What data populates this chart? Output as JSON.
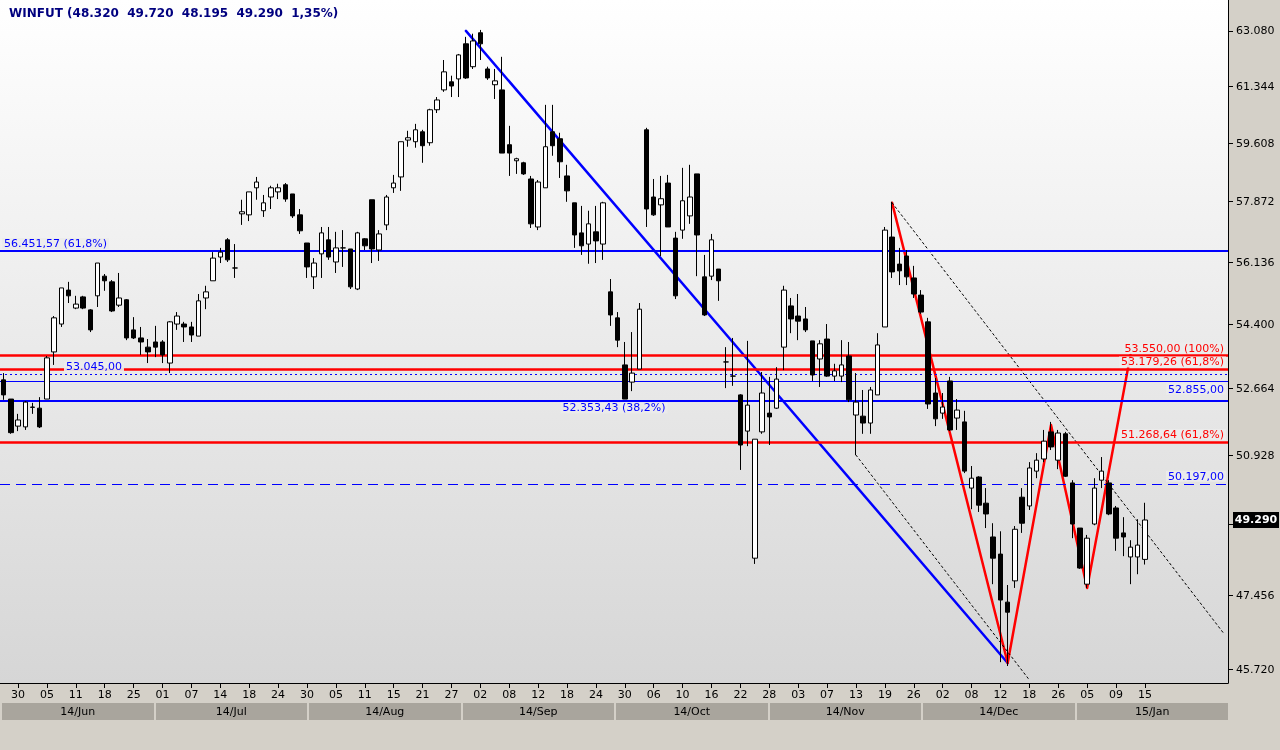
{
  "chart_data": {
    "type": "candlestick",
    "title": "WINFUT (48.320  49.720  48.195  49.290  1,35%)",
    "categories": [
      null,
      null,
      "30",
      null,
      null,
      null,
      "05",
      null,
      null,
      null,
      "11",
      null,
      null,
      null,
      "18",
      null,
      null,
      null,
      "25",
      null,
      null,
      null,
      "01",
      null,
      null,
      null,
      "07",
      null,
      null,
      null,
      "14",
      null,
      null,
      null,
      "18",
      null,
      null,
      null,
      "24",
      null,
      null,
      null,
      "30",
      null,
      null,
      null,
      "05",
      null,
      null,
      null,
      "11",
      null,
      null,
      null,
      "15",
      null,
      null,
      null,
      "21",
      null,
      null,
      null,
      "27",
      null,
      null,
      null,
      "02",
      null,
      null,
      null,
      "08",
      null,
      null,
      null,
      "12",
      null,
      null,
      null,
      "18",
      null,
      null,
      null,
      "24",
      null,
      null,
      null,
      "30",
      null,
      null,
      null,
      "06",
      null,
      null,
      null,
      "10",
      null,
      null,
      null,
      "16",
      null,
      null,
      null,
      "22",
      null,
      null,
      null,
      "28",
      null,
      null,
      null,
      "03",
      null,
      null,
      null,
      "07",
      null,
      null,
      null,
      "13",
      null,
      null,
      null,
      "19",
      null,
      null,
      null,
      "26",
      null,
      null,
      null,
      "02",
      null,
      null,
      null,
      "08",
      null,
      null,
      null,
      "12",
      null,
      null,
      null,
      "18",
      null,
      null,
      null,
      "26",
      null,
      null,
      null,
      "05",
      null,
      null,
      null,
      "09",
      null,
      null,
      null,
      "15",
      null,
      null,
      null,
      null,
      null,
      null,
      null,
      null,
      null,
      null,
      null
    ],
    "ohlc": [
      [
        52900,
        53080,
        52370,
        52500
      ],
      [
        52390,
        52390,
        51480,
        51510
      ],
      [
        51680,
        52000,
        51550,
        51840
      ],
      [
        51660,
        52340,
        51580,
        52310
      ],
      [
        52170,
        52290,
        52000,
        52180
      ],
      [
        52150,
        52440,
        51630,
        51660
      ],
      [
        52390,
        53540,
        52390,
        53490
      ],
      [
        53650,
        54630,
        53300,
        54580
      ],
      [
        54410,
        55410,
        54330,
        55410
      ],
      [
        55350,
        55580,
        54990,
        55190
      ],
      [
        54850,
        55190,
        54820,
        54960
      ],
      [
        55160,
        55190,
        54820,
        54850
      ],
      [
        54800,
        54820,
        54190,
        54250
      ],
      [
        55190,
        56110,
        54880,
        56110
      ],
      [
        55740,
        55800,
        55330,
        55610
      ],
      [
        55580,
        55630,
        54740,
        54770
      ],
      [
        54930,
        55830,
        54880,
        55130
      ],
      [
        55080,
        55100,
        53970,
        54030
      ],
      [
        54250,
        54600,
        54000,
        54030
      ],
      [
        54030,
        54330,
        53570,
        53920
      ],
      [
        53780,
        54000,
        53350,
        53650
      ],
      [
        53920,
        54360,
        53510,
        53780
      ],
      [
        53920,
        53970,
        53350,
        53570
      ],
      [
        53350,
        54490,
        53080,
        54470
      ],
      [
        54410,
        54740,
        54250,
        54630
      ],
      [
        54410,
        54470,
        53920,
        54330
      ],
      [
        54330,
        54470,
        53920,
        54110
      ],
      [
        54080,
        55240,
        54080,
        55050
      ],
      [
        55130,
        55470,
        54820,
        55300
      ],
      [
        55610,
        56420,
        55610,
        56250
      ],
      [
        56280,
        56540,
        56110,
        56420
      ],
      [
        56770,
        56820,
        56140,
        56200
      ],
      [
        55970,
        56650,
        55690,
        55970
      ],
      [
        57520,
        57930,
        57200,
        57580
      ],
      [
        57490,
        58160,
        57310,
        58160
      ],
      [
        58280,
        58600,
        57930,
        58450
      ],
      [
        57610,
        58070,
        57430,
        57840
      ],
      [
        58010,
        58340,
        57660,
        58280
      ],
      [
        58160,
        58400,
        57950,
        58280
      ],
      [
        58370,
        58420,
        57870,
        57950
      ],
      [
        58100,
        58100,
        57400,
        57460
      ],
      [
        57490,
        57660,
        56940,
        57030
      ],
      [
        56680,
        56680,
        55690,
        56000
      ],
      [
        55720,
        56250,
        55380,
        56110
      ],
      [
        56370,
        57140,
        55690,
        56970
      ],
      [
        56770,
        57140,
        56200,
        56280
      ],
      [
        56140,
        57000,
        55830,
        56540
      ],
      [
        56540,
        57050,
        56000,
        56540
      ],
      [
        56510,
        56510,
        55380,
        55440
      ],
      [
        55380,
        57000,
        55350,
        56970
      ],
      [
        56800,
        56820,
        56480,
        56600
      ],
      [
        57930,
        57930,
        56110,
        56510
      ],
      [
        56480,
        57050,
        56170,
        56940
      ],
      [
        57200,
        58070,
        57050,
        58010
      ],
      [
        58280,
        58660,
        58130,
        58420
      ],
      [
        58600,
        59650,
        58190,
        59650
      ],
      [
        59700,
        59980,
        59500,
        59770
      ],
      [
        59650,
        60190,
        59470,
        60010
      ],
      [
        59950,
        60010,
        59020,
        59530
      ],
      [
        59620,
        60650,
        59530,
        60620
      ],
      [
        60620,
        61010,
        60520,
        60920
      ],
      [
        61230,
        62160,
        61170,
        61790
      ],
      [
        61480,
        61670,
        61010,
        61350
      ],
      [
        61570,
        62350,
        61010,
        62320
      ],
      [
        62670,
        62890,
        61570,
        61600
      ],
      [
        61950,
        62990,
        61880,
        62760
      ],
      [
        63020,
        63110,
        62160,
        62670
      ],
      [
        61880,
        61950,
        61540,
        61600
      ],
      [
        61390,
        61880,
        60950,
        61510
      ],
      [
        61230,
        62260,
        59310,
        59310
      ],
      [
        59560,
        60130,
        58630,
        59310
      ],
      [
        59080,
        59170,
        58690,
        59140
      ],
      [
        59020,
        59050,
        58660,
        58690
      ],
      [
        58540,
        58630,
        57110,
        57230
      ],
      [
        57140,
        58510,
        57050,
        58450
      ],
      [
        58280,
        60770,
        58280,
        59500
      ],
      [
        59950,
        60770,
        59230,
        59530
      ],
      [
        59740,
        59920,
        58570,
        59050
      ],
      [
        58630,
        58960,
        57870,
        58190
      ],
      [
        57840,
        57840,
        56540,
        56910
      ],
      [
        56970,
        57750,
        56340,
        56600
      ],
      [
        56650,
        57610,
        56090,
        57230
      ],
      [
        57000,
        57750,
        56110,
        56740
      ],
      [
        56650,
        57870,
        56200,
        57840
      ],
      [
        55300,
        55660,
        54360,
        54660
      ],
      [
        54580,
        54740,
        53780,
        53970
      ],
      [
        53300,
        53920,
        52390,
        52390
      ],
      [
        52840,
        54190,
        52600,
        53080
      ],
      [
        53190,
        54990,
        53190,
        54820
      ],
      [
        60010,
        60070,
        57140,
        57660
      ],
      [
        58010,
        58540,
        57460,
        57490
      ],
      [
        57780,
        58630,
        56310,
        57960
      ],
      [
        58420,
        58660,
        57140,
        57140
      ],
      [
        56820,
        57000,
        55100,
        55190
      ],
      [
        57050,
        58870,
        56800,
        57900
      ],
      [
        57460,
        58960,
        57230,
        58010
      ],
      [
        58690,
        58690,
        55740,
        56910
      ],
      [
        55720,
        56340,
        54630,
        54660
      ],
      [
        55740,
        56940,
        55630,
        56770
      ],
      [
        55940,
        55940,
        55050,
        55610
      ],
      [
        53380,
        53780,
        52680,
        53380
      ],
      [
        53000,
        54030,
        52740,
        53000
      ],
      [
        52500,
        52520,
        50550,
        51190
      ],
      [
        51550,
        53950,
        51160,
        52230
      ],
      [
        48350,
        51340,
        48210,
        51340
      ],
      [
        51530,
        53110,
        51480,
        52550
      ],
      [
        52020,
        52980,
        51190,
        51920
      ],
      [
        52150,
        53240,
        52130,
        52920
      ],
      [
        53780,
        55470,
        53160,
        55350
      ],
      [
        54910,
        55130,
        54160,
        54550
      ],
      [
        54630,
        55240,
        53970,
        54490
      ],
      [
        54550,
        54880,
        54190,
        54250
      ],
      [
        53950,
        53950,
        52870,
        53030
      ],
      [
        53460,
        53970,
        52710,
        53870
      ],
      [
        54000,
        54410,
        52980,
        53000
      ],
      [
        53000,
        53330,
        52870,
        53140
      ],
      [
        53000,
        53970,
        52840,
        53300
      ],
      [
        53540,
        53920,
        52310,
        52370
      ],
      [
        51970,
        53080,
        50930,
        52310
      ],
      [
        51940,
        52630,
        51480,
        51760
      ],
      [
        51760,
        52710,
        51480,
        52630
      ],
      [
        52500,
        54160,
        52500,
        53840
      ],
      [
        54330,
        57140,
        54330,
        57050
      ],
      [
        56850,
        57870,
        55690,
        55860
      ],
      [
        56080,
        56540,
        55490,
        55890
      ],
      [
        56310,
        56480,
        55490,
        55720
      ],
      [
        55690,
        56030,
        55130,
        55240
      ],
      [
        55210,
        55350,
        54690,
        54740
      ],
      [
        54470,
        54580,
        52130,
        52260
      ],
      [
        52550,
        52950,
        51680,
        51870
      ],
      [
        52020,
        52550,
        51870,
        52180
      ],
      [
        52870,
        52980,
        51550,
        51580
      ],
      [
        51890,
        52390,
        51580,
        52100
      ],
      [
        51790,
        52080,
        50470,
        50520
      ],
      [
        50090,
        50650,
        49560,
        50340
      ],
      [
        50370,
        50390,
        49490,
        49660
      ],
      [
        49710,
        50090,
        49090,
        49440
      ],
      [
        48870,
        49210,
        47720,
        48350
      ],
      [
        48450,
        49010,
        45880,
        47340
      ],
      [
        47290,
        47700,
        45790,
        47050
      ],
      [
        47800,
        49140,
        47630,
        49060
      ],
      [
        49860,
        50090,
        48970,
        49210
      ],
      [
        49640,
        50750,
        49540,
        50600
      ],
      [
        50520,
        50980,
        50340,
        50800
      ],
      [
        50830,
        51580,
        50750,
        51290
      ],
      [
        51530,
        51790,
        51060,
        51140
      ],
      [
        50800,
        51580,
        50570,
        51500
      ],
      [
        51480,
        51530,
        50370,
        50390
      ],
      [
        50220,
        50290,
        48840,
        49190
      ],
      [
        49090,
        49090,
        48090,
        48110
      ],
      [
        47720,
        48920,
        47630,
        48840
      ],
      [
        49190,
        50340,
        49160,
        50090
      ],
      [
        50290,
        50880,
        50090,
        50520
      ],
      [
        50220,
        50290,
        49410,
        49440
      ],
      [
        49590,
        49640,
        48530,
        48840
      ],
      [
        48970,
        49360,
        48400,
        48870
      ],
      [
        48380,
        48790,
        47720,
        48620
      ],
      [
        48380,
        49310,
        47960,
        48670
      ],
      [
        48320,
        49720,
        48195,
        49290
      ],
      null,
      null,
      null,
      null,
      null,
      null,
      null,
      null,
      null,
      null,
      null
    ],
    "series": [
      {
        "type": "line",
        "color": "#0000ff",
        "line_style": "solid",
        "marker": "none",
        "values": [
          null,
          null,
          null,
          null,
          null,
          null,
          null,
          null,
          null,
          null,
          null,
          null,
          null,
          null,
          null,
          null,
          null,
          null,
          null,
          null,
          null,
          null,
          null,
          null,
          null,
          null,
          null,
          null,
          null,
          null,
          null,
          null,
          null,
          null,
          null,
          null,
          null,
          null,
          null,
          null,
          null,
          null,
          null,
          null,
          null,
          null,
          null,
          null,
          null,
          null,
          null,
          null,
          null,
          null,
          null,
          null,
          null,
          null,
          null,
          null,
          null,
          null,
          null,
          null,
          63080,
          null,
          null,
          null,
          null,
          null,
          null,
          null,
          null,
          null,
          null,
          null,
          null,
          null,
          null,
          null,
          null,
          null,
          null,
          null,
          null,
          null,
          null,
          null,
          null,
          null,
          null,
          null,
          null,
          null,
          null,
          null,
          null,
          null,
          null,
          null,
          null,
          null,
          null,
          null,
          null,
          null,
          null,
          null,
          null,
          null,
          null,
          null,
          null,
          null,
          null,
          null,
          null,
          null,
          null,
          null,
          null,
          null,
          null,
          null,
          null,
          null,
          null,
          null,
          null,
          null,
          null,
          null,
          null,
          null,
          null,
          null,
          null,
          null,
          null,
          45860,
          null,
          null,
          null,
          null,
          null,
          null,
          null,
          null,
          null,
          null,
          null,
          null,
          null,
          null,
          null,
          null,
          null,
          null,
          null,
          null,
          null,
          null,
          null,
          null,
          null,
          null,
          null,
          null,
          null,
          null
        ]
      },
      {
        "type": "line",
        "color": "#ff0000",
        "line_style": "solid",
        "marker": "none",
        "values": [
          null,
          null,
          null,
          null,
          null,
          null,
          null,
          null,
          null,
          null,
          null,
          null,
          null,
          null,
          null,
          null,
          null,
          null,
          null,
          null,
          null,
          null,
          null,
          null,
          null,
          null,
          null,
          null,
          null,
          null,
          null,
          null,
          null,
          null,
          null,
          null,
          null,
          null,
          null,
          null,
          null,
          null,
          null,
          null,
          null,
          null,
          null,
          null,
          null,
          null,
          null,
          null,
          null,
          null,
          null,
          null,
          null,
          null,
          null,
          null,
          null,
          null,
          null,
          null,
          null,
          null,
          null,
          null,
          null,
          null,
          null,
          null,
          null,
          null,
          null,
          null,
          null,
          null,
          null,
          null,
          null,
          null,
          null,
          null,
          null,
          null,
          null,
          null,
          null,
          null,
          null,
          null,
          null,
          null,
          null,
          null,
          null,
          null,
          null,
          null,
          null,
          null,
          null,
          null,
          null,
          null,
          null,
          null,
          null,
          null,
          null,
          null,
          null,
          null,
          null,
          null,
          null,
          null,
          null,
          null,
          null,
          null,
          null,
          57840,
          null,
          null,
          null,
          null,
          null,
          null,
          null,
          null,
          null,
          null,
          null,
          null,
          null,
          null,
          null,
          45860,
          null,
          null,
          null,
          null,
          null,
          51710,
          null,
          null,
          null,
          null,
          47630,
          null,
          null,
          null,
          null,
          null,
          53570,
          null,
          null,
          null,
          null,
          null,
          null,
          null,
          null,
          null,
          null,
          null,
          null,
          null
        ]
      },
      {
        "type": "line",
        "color": "#000000",
        "line_style": "dotted",
        "marker": "none",
        "values": [
          null,
          null,
          null,
          null,
          null,
          null,
          null,
          null,
          null,
          null,
          null,
          null,
          null,
          null,
          null,
          null,
          null,
          null,
          null,
          null,
          null,
          null,
          null,
          null,
          null,
          null,
          null,
          null,
          null,
          null,
          null,
          null,
          null,
          null,
          null,
          null,
          null,
          null,
          null,
          null,
          null,
          null,
          null,
          null,
          null,
          null,
          null,
          null,
          null,
          null,
          null,
          null,
          null,
          null,
          null,
          null,
          null,
          null,
          null,
          null,
          null,
          null,
          null,
          null,
          null,
          null,
          null,
          null,
          null,
          null,
          null,
          null,
          null,
          null,
          null,
          null,
          null,
          null,
          null,
          null,
          null,
          null,
          null,
          null,
          null,
          null,
          null,
          null,
          null,
          null,
          null,
          null,
          null,
          null,
          null,
          null,
          null,
          null,
          null,
          null,
          null,
          null,
          null,
          null,
          null,
          null,
          null,
          null,
          null,
          null,
          null,
          null,
          null,
          null,
          null,
          null,
          null,
          null,
          null,
          null,
          null,
          null,
          null,
          57840,
          null,
          null,
          null,
          null,
          null,
          null,
          null,
          null,
          null,
          null,
          null,
          null,
          null,
          null,
          null,
          null,
          null,
          null,
          null,
          null,
          null,
          null,
          null,
          null,
          null,
          null,
          null,
          null,
          null,
          null,
          null,
          null,
          null,
          null,
          null,
          null,
          null,
          null,
          null,
          null,
          null,
          null,
          null,
          null,
          null,
          46530
        ]
      },
      {
        "type": "line",
        "color": "#000000",
        "line_style": "dotted",
        "marker": "none",
        "values": [
          null,
          null,
          null,
          null,
          null,
          null,
          null,
          null,
          null,
          null,
          null,
          null,
          null,
          null,
          null,
          null,
          null,
          null,
          null,
          null,
          null,
          null,
          null,
          null,
          null,
          null,
          null,
          null,
          null,
          null,
          null,
          null,
          null,
          null,
          null,
          null,
          null,
          null,
          null,
          null,
          null,
          null,
          null,
          null,
          null,
          null,
          null,
          null,
          null,
          null,
          null,
          null,
          null,
          null,
          null,
          null,
          null,
          null,
          null,
          null,
          null,
          null,
          null,
          null,
          null,
          null,
          null,
          null,
          null,
          null,
          null,
          null,
          null,
          null,
          null,
          null,
          null,
          null,
          null,
          null,
          null,
          null,
          null,
          null,
          null,
          null,
          null,
          null,
          null,
          null,
          null,
          null,
          null,
          null,
          null,
          null,
          null,
          null,
          null,
          null,
          null,
          null,
          null,
          null,
          null,
          null,
          null,
          null,
          null,
          null,
          null,
          null,
          null,
          null,
          null,
          null,
          null,
          null,
          50930,
          null,
          null,
          null,
          null,
          null,
          null,
          null,
          null,
          null,
          null,
          null,
          null,
          null,
          null,
          null,
          null,
          null,
          null,
          null,
          null,
          null,
          null,
          null,
          45470,
          null,
          null,
          null,
          null,
          null,
          null,
          null,
          null,
          null,
          null,
          null,
          null,
          null,
          null,
          null,
          null,
          null,
          null,
          null,
          null,
          null,
          null,
          null,
          null,
          null,
          null,
          null
        ]
      }
    ],
    "log": "y",
    "ylim": [
      45400,
      64070
    ],
    "yticks": [
      {
        "value": 45720,
        "label": "45.720"
      },
      {
        "value": 47456,
        "label": "47.456"
      },
      {
        "value": 49192,
        "label": null
      },
      {
        "value": 50928,
        "label": "50.928"
      },
      {
        "value": 52664,
        "label": "52.664"
      },
      {
        "value": 54400,
        "label": "54.400"
      },
      {
        "value": 56136,
        "label": "56.136"
      },
      {
        "value": 57872,
        "label": "57.872"
      },
      {
        "value": 59608,
        "label": "59.608"
      },
      {
        "value": 61344,
        "label": "61.344"
      },
      {
        "value": 63080,
        "label": "63.080"
      }
    ],
    "ref_lines": [
      {
        "axis": "y",
        "value": 56451.57,
        "label": "56.451,57 (61,8%)",
        "color": "#0000ff",
        "line_style": "solid"
      },
      {
        "axis": "y",
        "value": 52353.43,
        "label": "52.353,43 (38,2%)",
        "color": "#0000ff",
        "line_style": "solid"
      },
      {
        "axis": "y",
        "value": 53045,
        "label": "53.045,00",
        "color": "#0000ff",
        "line_style": "dotted"
      },
      {
        "axis": "y",
        "value": 52855,
        "label": "52.855,00",
        "color": "#0000ff",
        "line_style": "solid"
      },
      {
        "axis": "y",
        "value": 50197,
        "label": "50.197,00",
        "color": "#0000ff",
        "line_style": "dashed"
      },
      {
        "axis": "y",
        "value": 53179.26,
        "label": "53.179,26 (61,8%)",
        "color": "#ff0000",
        "line_style": "solid"
      },
      {
        "axis": "y",
        "value": 51268.64,
        "label": "51.268,64 (61,8%)",
        "color": "#ff0000",
        "line_style": "solid"
      },
      {
        "axis": "y",
        "value": 53550,
        "label": "53.550,00 (100%)",
        "color": "#ff0000",
        "line_style": "solid"
      }
    ],
    "annotations": [
      "14/Jun",
      "14/Jul",
      "14/Aug",
      "14/Sep",
      "14/Oct",
      "14/Nov",
      "14/Dec",
      "15/Jan",
      "49.290"
    ]
  }
}
